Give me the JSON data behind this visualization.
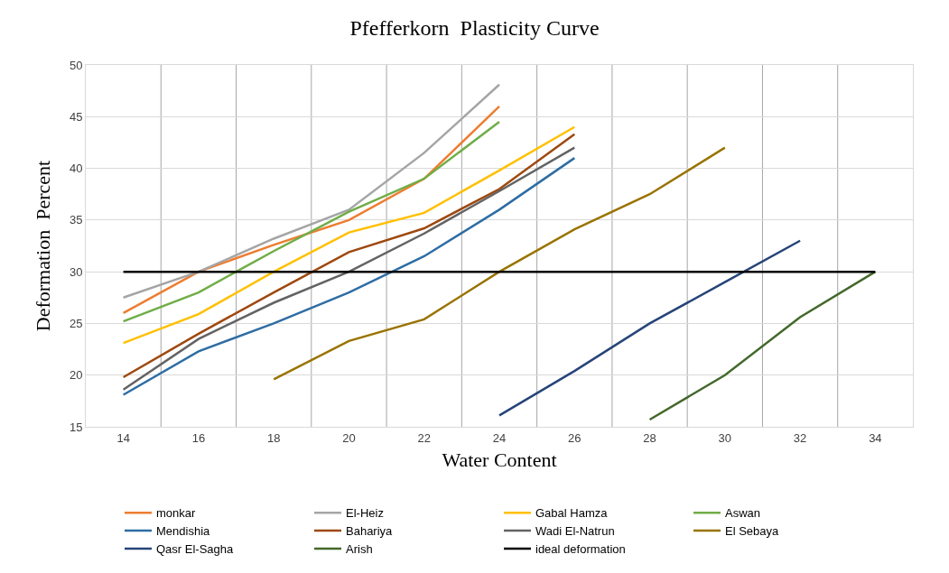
{
  "chart_data": {
    "type": "line",
    "title": "Pfefferkorn  Plasticity Curve",
    "xlabel": "Water Content",
    "ylabel": "Deformation  Percent",
    "categories": [
      "14",
      "16",
      "18",
      "20",
      "22",
      "24",
      "26",
      "28",
      "30",
      "32",
      "34"
    ],
    "ylim": [
      15,
      50
    ],
    "yticks": [
      15,
      20,
      25,
      30,
      35,
      40,
      45,
      50
    ],
    "grid": true,
    "legend": "bottom",
    "marker": "none",
    "line_style": "solid",
    "series": [
      {
        "name": "monkar",
        "color": "#ed7d31",
        "values": [
          26,
          30,
          32.6,
          35,
          39,
          46,
          null,
          null,
          null,
          null,
          null
        ]
      },
      {
        "name": "El-Heiz",
        "color": "#a5a5a5",
        "values": [
          27.5,
          30,
          33.2,
          36,
          41.5,
          48.1,
          null,
          null,
          null,
          null,
          null
        ]
      },
      {
        "name": "Gabal Hamza",
        "color": "#ffc000",
        "values": [
          23.1,
          25.9,
          30,
          33.8,
          35.7,
          39.8,
          44,
          null,
          null,
          null,
          null
        ]
      },
      {
        "name": "Aswan",
        "color": "#70ad47",
        "values": [
          25.2,
          28,
          32,
          35.8,
          39,
          44.5,
          null,
          null,
          null,
          null,
          null
        ]
      },
      {
        "name": "Mendishia",
        "color": "#2e6da4",
        "values": [
          18.1,
          22.3,
          25,
          28,
          31.5,
          36,
          41,
          null,
          null,
          null,
          null
        ]
      },
      {
        "name": "Bahariya",
        "color": "#9e480e",
        "values": [
          19.8,
          24,
          28,
          31.9,
          34.2,
          38,
          43.3,
          null,
          null,
          null,
          null
        ]
      },
      {
        "name": "Wadi El-Natrun",
        "color": "#636363",
        "values": [
          18.6,
          23.5,
          27,
          30,
          33.7,
          37.8,
          42,
          null,
          null,
          null,
          null
        ]
      },
      {
        "name": "El Sebaya",
        "color": "#997300",
        "values": [
          null,
          null,
          19.6,
          23.3,
          25.4,
          30,
          34.1,
          37.5,
          42,
          null,
          null
        ]
      },
      {
        "name": "Qasr El-Sagha",
        "color": "#264478",
        "values": [
          null,
          null,
          null,
          null,
          null,
          16.1,
          20.4,
          25,
          29,
          33,
          null
        ]
      },
      {
        "name": "Arish",
        "color": "#43682b",
        "values": [
          null,
          null,
          null,
          null,
          null,
          null,
          null,
          15.7,
          20,
          25.6,
          30
        ]
      },
      {
        "name": "ideal deformation",
        "color": "#000000",
        "values": [
          30,
          30,
          30,
          30,
          30,
          30,
          30,
          30,
          30,
          30,
          30
        ]
      }
    ]
  }
}
